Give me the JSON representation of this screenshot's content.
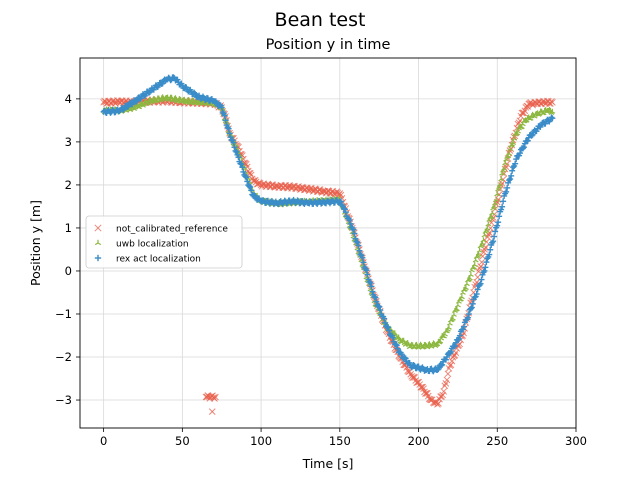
{
  "figure_title": "Bean test",
  "chart_data": {
    "type": "scatter",
    "title": "Position y in time",
    "xlabel": "Time [s]",
    "ylabel": "Position y [m]",
    "xlim": [
      -15,
      300
    ],
    "ylim": [
      -3.65,
      4.95
    ],
    "xticks": [
      0,
      50,
      100,
      150,
      200,
      250,
      300
    ],
    "yticks": [
      -3,
      -2,
      -1,
      0,
      1,
      2,
      3,
      4
    ],
    "xtick_labels": [
      "0",
      "50",
      "100",
      "150",
      "200",
      "250",
      "300"
    ],
    "ytick_labels": [
      "−3",
      "−2",
      "−1",
      "0",
      "1",
      "2",
      "3",
      "4"
    ],
    "grid": true,
    "legend_position": "center-left",
    "series": [
      {
        "name": "not_calibrated_reference",
        "marker": "x",
        "color": "#e8604c",
        "points": [
          [
            0,
            3.92
          ],
          [
            10,
            3.93
          ],
          [
            20,
            3.92
          ],
          [
            30,
            3.95
          ],
          [
            40,
            3.95
          ],
          [
            50,
            3.93
          ],
          [
            60,
            3.92
          ],
          [
            70,
            3.9
          ],
          [
            75,
            3.8
          ],
          [
            78,
            3.5
          ],
          [
            80,
            3.2
          ],
          [
            85,
            2.9
          ],
          [
            90,
            2.5
          ],
          [
            95,
            2.1
          ],
          [
            100,
            2.0
          ],
          [
            110,
            1.97
          ],
          [
            120,
            1.95
          ],
          [
            130,
            1.9
          ],
          [
            140,
            1.85
          ],
          [
            150,
            1.8
          ],
          [
            152,
            1.6
          ],
          [
            158,
            1.0
          ],
          [
            165,
            0.2
          ],
          [
            172,
            -0.6
          ],
          [
            180,
            -1.4
          ],
          [
            188,
            -2.0
          ],
          [
            195,
            -2.4
          ],
          [
            202,
            -2.7
          ],
          [
            208,
            -3.0
          ],
          [
            212,
            -3.1
          ],
          [
            216,
            -2.8
          ],
          [
            220,
            -2.2
          ],
          [
            228,
            -1.5
          ],
          [
            235,
            -0.5
          ],
          [
            242,
            0.5
          ],
          [
            250,
            1.6
          ],
          [
            258,
            2.8
          ],
          [
            265,
            3.6
          ],
          [
            270,
            3.88
          ],
          [
            275,
            3.9
          ],
          [
            280,
            3.92
          ],
          [
            285,
            3.92
          ],
          [
            65,
            -2.93
          ],
          [
            68,
            -2.93
          ],
          [
            71,
            -2.93
          ],
          [
            69,
            -3.27
          ]
        ]
      },
      {
        "name": "uwb localization",
        "marker": "tri_up",
        "color": "#8cb840",
        "points": [
          [
            0,
            3.72
          ],
          [
            10,
            3.72
          ],
          [
            20,
            3.8
          ],
          [
            30,
            3.95
          ],
          [
            40,
            4.02
          ],
          [
            50,
            3.95
          ],
          [
            60,
            3.92
          ],
          [
            70,
            3.9
          ],
          [
            75,
            3.8
          ],
          [
            80,
            3.2
          ],
          [
            85,
            2.8
          ],
          [
            90,
            2.3
          ],
          [
            95,
            1.8
          ],
          [
            100,
            1.62
          ],
          [
            110,
            1.55
          ],
          [
            120,
            1.58
          ],
          [
            130,
            1.6
          ],
          [
            140,
            1.62
          ],
          [
            150,
            1.65
          ],
          [
            152,
            1.5
          ],
          [
            158,
            0.9
          ],
          [
            165,
            0.1
          ],
          [
            172,
            -0.7
          ],
          [
            180,
            -1.3
          ],
          [
            188,
            -1.6
          ],
          [
            195,
            -1.75
          ],
          [
            205,
            -1.75
          ],
          [
            212,
            -1.7
          ],
          [
            218,
            -1.4
          ],
          [
            225,
            -0.8
          ],
          [
            232,
            -0.2
          ],
          [
            240,
            0.6
          ],
          [
            248,
            1.5
          ],
          [
            255,
            2.5
          ],
          [
            262,
            3.2
          ],
          [
            268,
            3.5
          ],
          [
            275,
            3.65
          ],
          [
            282,
            3.72
          ],
          [
            285,
            3.7
          ]
        ]
      },
      {
        "name": "rex act localization",
        "marker": "plus",
        "color": "#3a8dc8",
        "points": [
          [
            0,
            3.7
          ],
          [
            10,
            3.72
          ],
          [
            20,
            3.95
          ],
          [
            30,
            4.2
          ],
          [
            40,
            4.45
          ],
          [
            45,
            4.48
          ],
          [
            50,
            4.3
          ],
          [
            60,
            4.05
          ],
          [
            70,
            3.95
          ],
          [
            75,
            3.8
          ],
          [
            80,
            3.2
          ],
          [
            85,
            2.7
          ],
          [
            90,
            2.2
          ],
          [
            95,
            1.75
          ],
          [
            100,
            1.62
          ],
          [
            110,
            1.58
          ],
          [
            120,
            1.62
          ],
          [
            130,
            1.58
          ],
          [
            140,
            1.6
          ],
          [
            150,
            1.62
          ],
          [
            152,
            1.5
          ],
          [
            158,
            1.0
          ],
          [
            165,
            0.2
          ],
          [
            172,
            -0.6
          ],
          [
            180,
            -1.3
          ],
          [
            188,
            -1.9
          ],
          [
            195,
            -2.2
          ],
          [
            205,
            -2.3
          ],
          [
            212,
            -2.3
          ],
          [
            218,
            -2.0
          ],
          [
            225,
            -1.6
          ],
          [
            232,
            -1.0
          ],
          [
            240,
            -0.2
          ],
          [
            248,
            0.8
          ],
          [
            255,
            1.8
          ],
          [
            262,
            2.6
          ],
          [
            270,
            3.1
          ],
          [
            278,
            3.4
          ],
          [
            285,
            3.55
          ]
        ]
      }
    ]
  }
}
